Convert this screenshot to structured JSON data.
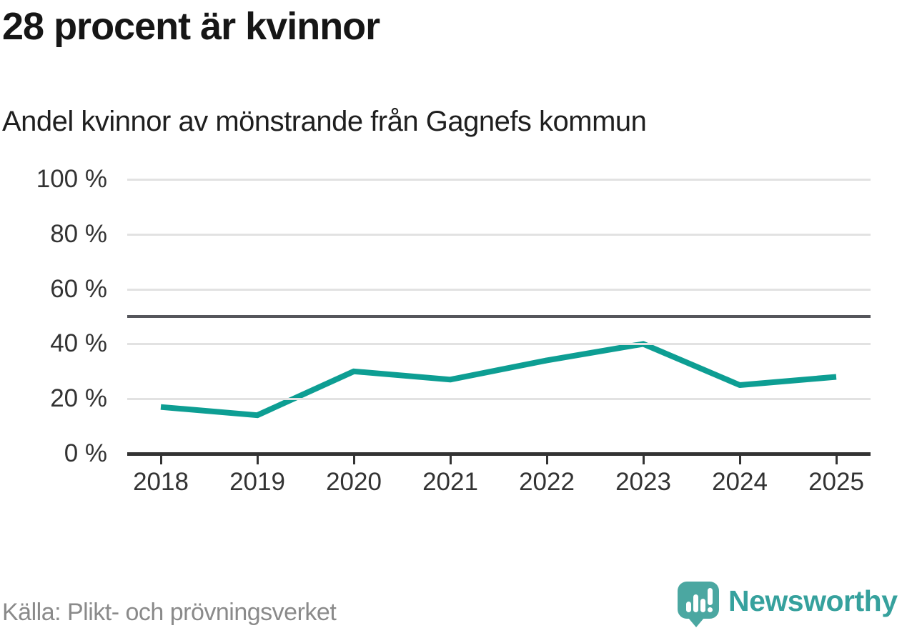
{
  "chart_data": {
    "type": "line",
    "title": "28 procent är kvinnor",
    "subtitle": "Andel kvinnor av mönstrande från Gagnefs kommun",
    "x": [
      "2018",
      "2019",
      "2020",
      "2021",
      "2022",
      "2023",
      "2024",
      "2025"
    ],
    "series": [
      {
        "name": "Andel kvinnor av mönstrande",
        "values": [
          17,
          14,
          30,
          27,
          34,
          40,
          25,
          28
        ]
      }
    ],
    "ylim": [
      0,
      100
    ],
    "yticks": [
      0,
      20,
      40,
      60,
      80,
      100
    ],
    "ytick_suffix": " %",
    "reference_line": 50,
    "grid": true,
    "legend": "none",
    "line_color": "#0d9e93",
    "gridline_color": "#e2e2e2",
    "reference_line_color": "#55565b",
    "axis_color": "#333333"
  },
  "footer": {
    "source": "Källa: Plikt- och prövningsverket",
    "logo_text": "Newsworthy",
    "logo_text_color": "#36a19d",
    "logo_icon_color": "#4ba7a1"
  }
}
